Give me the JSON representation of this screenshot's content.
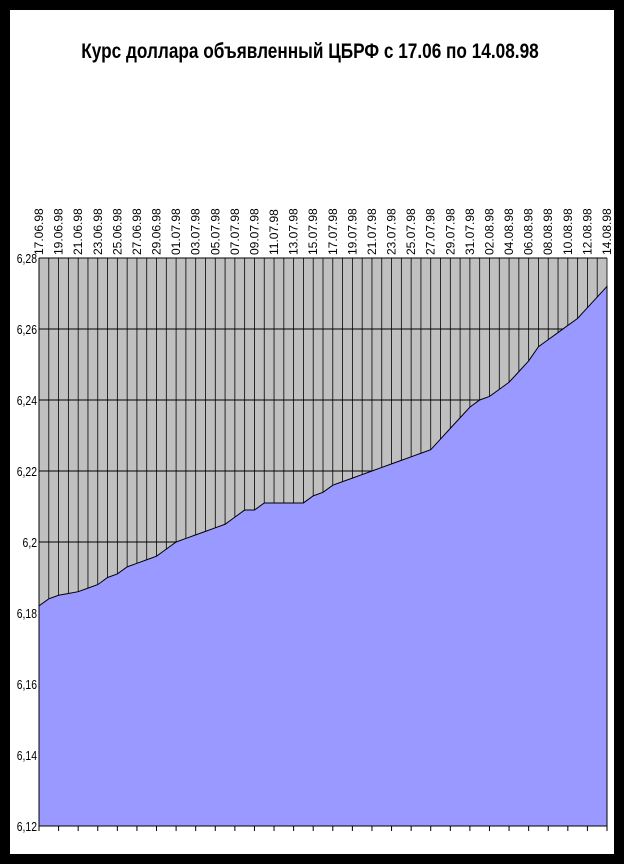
{
  "chart_data": {
    "type": "area",
    "title": "Курс доллара объявленный ЦБРФ с 17.06 по 14.08.98",
    "categories": [
      "17.06.98",
      null,
      "19.06.98",
      null,
      "21.06.98",
      null,
      "23.06.98",
      null,
      "25.06.98",
      null,
      "27.06.98",
      null,
      "29.06.98",
      null,
      "01.07.98",
      null,
      "03.07.98",
      null,
      "05.07.98",
      null,
      "07.07.98",
      null,
      "09.07.98",
      null,
      "11.07.98",
      null,
      "13.07.98",
      null,
      "15.07.98",
      null,
      "17.07.98",
      null,
      "19.07.98",
      null,
      "21.07.98",
      null,
      "23.07.98",
      null,
      "25.07.98",
      null,
      "27.07.98",
      null,
      "29.07.98",
      null,
      "31.07.98",
      null,
      "02.08.98",
      null,
      "04.08.98",
      null,
      "06.08.98",
      null,
      "08.08.98",
      null,
      "10.08.98",
      null,
      "12.08.98",
      null,
      "14.08.98"
    ],
    "values": [
      6.182,
      6.184,
      6.185,
      6.1855,
      6.186,
      6.187,
      6.188,
      6.19,
      6.191,
      6.193,
      6.194,
      6.195,
      6.196,
      6.198,
      6.2,
      6.201,
      6.202,
      6.203,
      6.204,
      6.205,
      6.207,
      6.209,
      6.209,
      6.211,
      6.211,
      6.211,
      6.211,
      6.211,
      6.213,
      6.214,
      6.216,
      6.217,
      6.218,
      6.219,
      6.22,
      6.221,
      6.222,
      6.223,
      6.224,
      6.225,
      6.226,
      6.229,
      6.232,
      6.235,
      6.238,
      6.24,
      6.241,
      6.243,
      6.245,
      6.248,
      6.251,
      6.255,
      6.257,
      6.259,
      6.261,
      6.263,
      6.266,
      6.269,
      6.272
    ],
    "color": "#9999ff",
    "ylim": [
      6.12,
      6.28
    ],
    "yticks": [
      {
        "value": 6.12,
        "label": "6,12"
      },
      {
        "value": 6.14,
        "label": "6,14"
      },
      {
        "value": 6.16,
        "label": "6,16"
      },
      {
        "value": 6.18,
        "label": "6,18"
      },
      {
        "value": 6.2,
        "label": "6,2"
      },
      {
        "value": 6.22,
        "label": "6,22"
      },
      {
        "value": 6.24,
        "label": "6,24"
      },
      {
        "value": 6.26,
        "label": "6,26"
      },
      {
        "value": 6.28,
        "label": "6,28"
      }
    ],
    "grid": true
  }
}
